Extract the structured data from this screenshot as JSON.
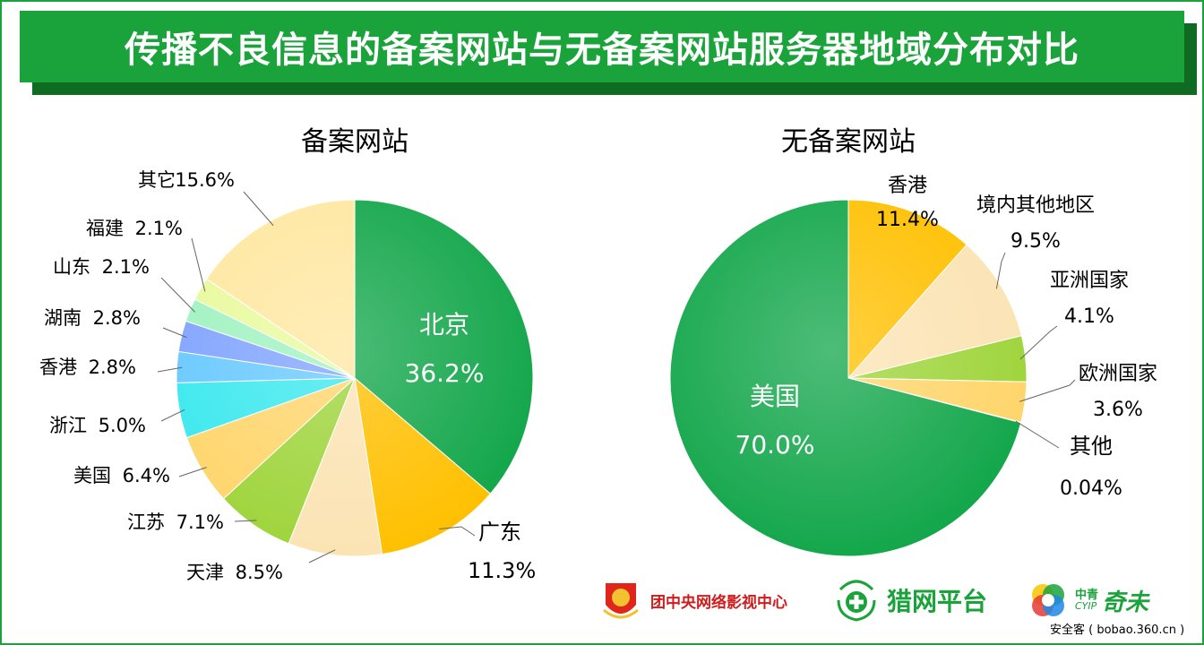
{
  "title": "传播不良信息的备案网站与无备案网站服务器地域分布对比",
  "chart_data": [
    {
      "type": "pie",
      "title": "备案网站",
      "slices": [
        {
          "name": "北京",
          "value": 36.2,
          "label": "36.2%",
          "color": "#12a64a"
        },
        {
          "name": "广东",
          "value": 11.3,
          "label": "11.3%",
          "color": "#ffc000"
        },
        {
          "name": "天津",
          "value": 8.5,
          "label": "8.5%",
          "color": "#fbe3b3"
        },
        {
          "name": "江苏",
          "value": 7.1,
          "label": "7.1%",
          "color": "#9ed43a"
        },
        {
          "name": "美国",
          "value": 6.4,
          "label": "6.4%",
          "color": "#ffd56a"
        },
        {
          "name": "浙江",
          "value": 5.0,
          "label": "5.0%",
          "color": "#38e8ee"
        },
        {
          "name": "香港",
          "value": 2.8,
          "label": "2.8%",
          "color": "#66c8ff"
        },
        {
          "name": "湖南",
          "value": 2.8,
          "label": "2.8%",
          "color": "#7ea2ff"
        },
        {
          "name": "山东",
          "value": 2.1,
          "label": "2.1%",
          "color": "#9ff2c0"
        },
        {
          "name": "福建",
          "value": 2.1,
          "label": "2.1%",
          "color": "#e8fa9c"
        },
        {
          "name": "其它",
          "value": 15.6,
          "label": "15.6%",
          "color": "#ffe7a0"
        }
      ]
    },
    {
      "type": "pie",
      "title": "无备案网站",
      "slices": [
        {
          "name": "香港",
          "value": 11.4,
          "label": "11.4%",
          "color": "#ffc000"
        },
        {
          "name": "境内其他地区",
          "value": 9.5,
          "label": "9.5%",
          "color": "#fbe3b3"
        },
        {
          "name": "亚洲国家",
          "value": 4.1,
          "label": "4.1%",
          "color": "#9ed43a"
        },
        {
          "name": "欧洲国家",
          "value": 3.6,
          "label": "3.6%",
          "color": "#ffd56a"
        },
        {
          "name": "其他",
          "value": 0.04,
          "label": "0.04%",
          "color": "#bfbfbf"
        },
        {
          "name": "美国",
          "value": 70.0,
          "label": "70.0%",
          "color": "#12a64a"
        }
      ]
    }
  ],
  "logos": {
    "cyl": "团中央网络影视中心",
    "liewang": "猎网平台",
    "qiwei_top": "中青",
    "qiwei_mid": "CYIP",
    "qiwei_name": "奇未",
    "watermark": "安全客 ( bobao.360.cn )"
  }
}
